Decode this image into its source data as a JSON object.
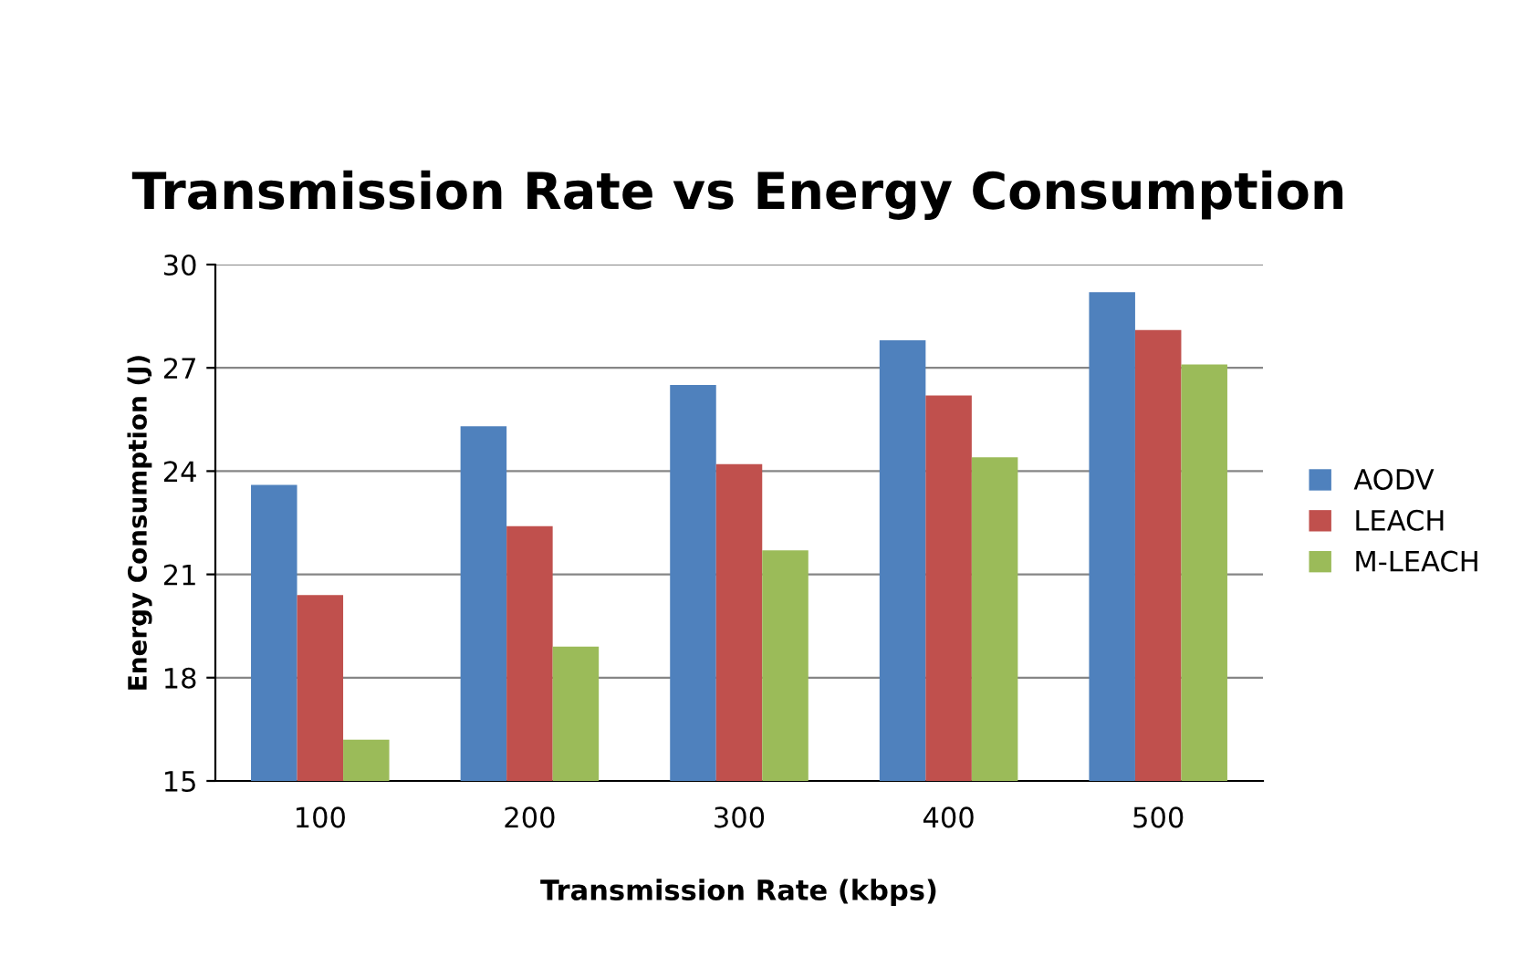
{
  "chart_data": {
    "type": "bar",
    "title": "Transmission Rate vs Energy Consumption",
    "xlabel": "Transmission Rate (kbps)",
    "ylabel": "Energy Consumption (J)",
    "categories": [
      "100",
      "200",
      "300",
      "400",
      "500"
    ],
    "series": [
      {
        "name": "AODV",
        "color": "#4f81bd",
        "values": [
          23.6,
          25.3,
          26.5,
          27.8,
          29.2
        ]
      },
      {
        "name": "LEACH",
        "color": "#c0504d",
        "values": [
          20.4,
          22.4,
          24.2,
          26.2,
          28.1
        ]
      },
      {
        "name": "M-LEACH",
        "color": "#9bbb59",
        "values": [
          16.2,
          18.9,
          21.7,
          24.4,
          27.1
        ]
      }
    ],
    "ylim": [
      15,
      30
    ],
    "yticks": [
      15,
      18,
      21,
      24,
      27,
      30
    ],
    "grid": "y",
    "legend": "right"
  }
}
